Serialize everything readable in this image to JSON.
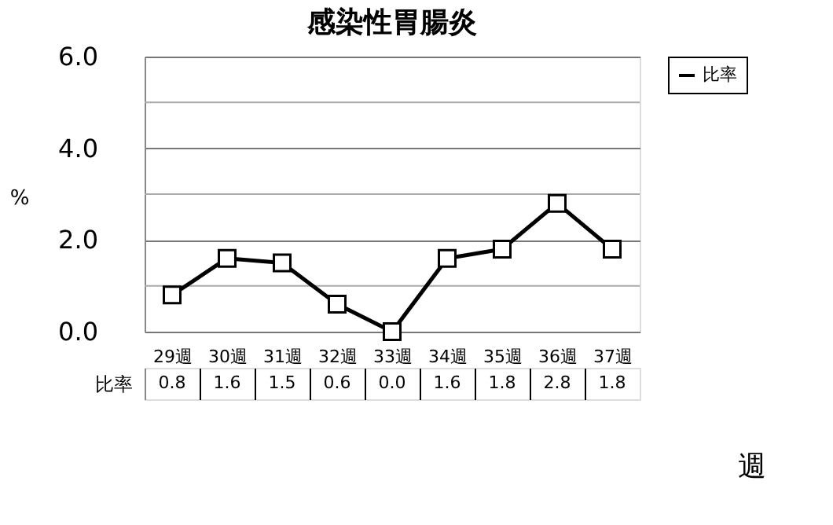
{
  "chart_data": {
    "type": "line",
    "title": "感染性胃腸炎",
    "ylabel": "%",
    "xlabel": "週",
    "categories": [
      "29週",
      "30週",
      "31週",
      "32週",
      "33週",
      "34週",
      "35週",
      "36週",
      "37週"
    ],
    "series": [
      {
        "name": "比率",
        "color": "#000000",
        "values": [
          0.8,
          1.6,
          1.5,
          0.6,
          0.0,
          1.6,
          1.8,
          2.8,
          1.8
        ],
        "value_labels": [
          "0.8",
          "1.6",
          "1.5",
          "0.6",
          "0.0",
          "1.6",
          "1.8",
          "2.8",
          "1.8"
        ]
      }
    ],
    "ylim": [
      0,
      6
    ],
    "yticks": [
      {
        "value": 0,
        "label": "0.0"
      },
      {
        "value": 1,
        "label": null
      },
      {
        "value": 2,
        "label": "2.0"
      },
      {
        "value": 3,
        "label": null
      },
      {
        "value": 4,
        "label": "4.0"
      },
      {
        "value": 5,
        "label": null
      },
      {
        "value": 6,
        "label": "6.0"
      }
    ],
    "grid": true,
    "legend": "top right",
    "marker": "square",
    "line_style": "solid"
  }
}
